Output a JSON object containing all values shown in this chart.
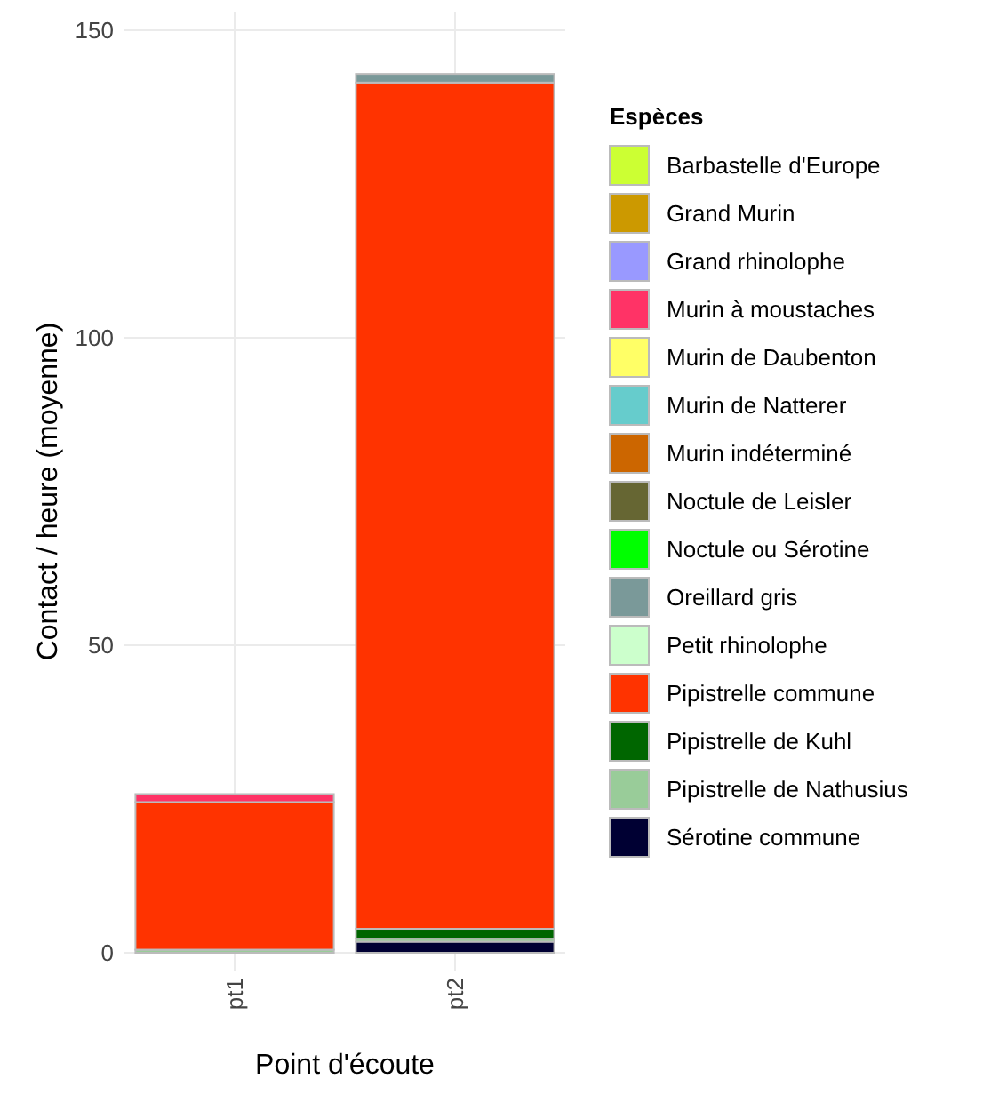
{
  "chart_data": {
    "type": "bar",
    "stacked": true,
    "xlabel": "Point d'écoute",
    "ylabel": "Contact / heure (moyenne)",
    "legend_title": "Espèces",
    "legend": "right",
    "grid": true,
    "categories": [
      "pt1",
      "pt2"
    ],
    "ylim": [
      0,
      150
    ],
    "yticks": [
      0,
      50,
      100,
      150
    ],
    "series": [
      {
        "name": "Sérotine commune",
        "color": "#000033",
        "values": [
          0,
          1.8
        ]
      },
      {
        "name": "Pipistrelle de Nathusius",
        "color": "#99cc99",
        "values": [
          0.5,
          0.5
        ]
      },
      {
        "name": "Pipistrelle de Kuhl",
        "color": "#006600",
        "values": [
          0,
          1.6
        ]
      },
      {
        "name": "Pipistrelle commune",
        "color": "#ff3300",
        "values": [
          24,
          137.6
        ]
      },
      {
        "name": "Petit rhinolophe",
        "color": "#ccffcc",
        "values": [
          0,
          0
        ]
      },
      {
        "name": "Oreillard gris",
        "color": "#7a9999",
        "values": [
          0,
          1.4
        ]
      },
      {
        "name": "Noctule ou Sérotine",
        "color": "#00ff00",
        "values": [
          0,
          0
        ]
      },
      {
        "name": "Noctule de Leisler",
        "color": "#666633",
        "values": [
          0,
          0
        ]
      },
      {
        "name": "Murin indéterminé",
        "color": "#cc6600",
        "values": [
          0,
          0
        ]
      },
      {
        "name": "Murin de Natterer",
        "color": "#66cccc",
        "values": [
          0,
          0
        ]
      },
      {
        "name": "Murin de Daubenton",
        "color": "#ffff66",
        "values": [
          0,
          0
        ]
      },
      {
        "name": "Murin à moustaches",
        "color": "#ff3366",
        "values": [
          1.3,
          0
        ]
      },
      {
        "name": "Grand rhinolophe",
        "color": "#9999ff",
        "values": [
          0,
          0
        ]
      },
      {
        "name": "Grand Murin",
        "color": "#cc9900",
        "values": [
          0,
          0
        ]
      },
      {
        "name": "Barbastelle d'Europe",
        "color": "#ccff33",
        "values": [
          0,
          0
        ]
      }
    ]
  }
}
